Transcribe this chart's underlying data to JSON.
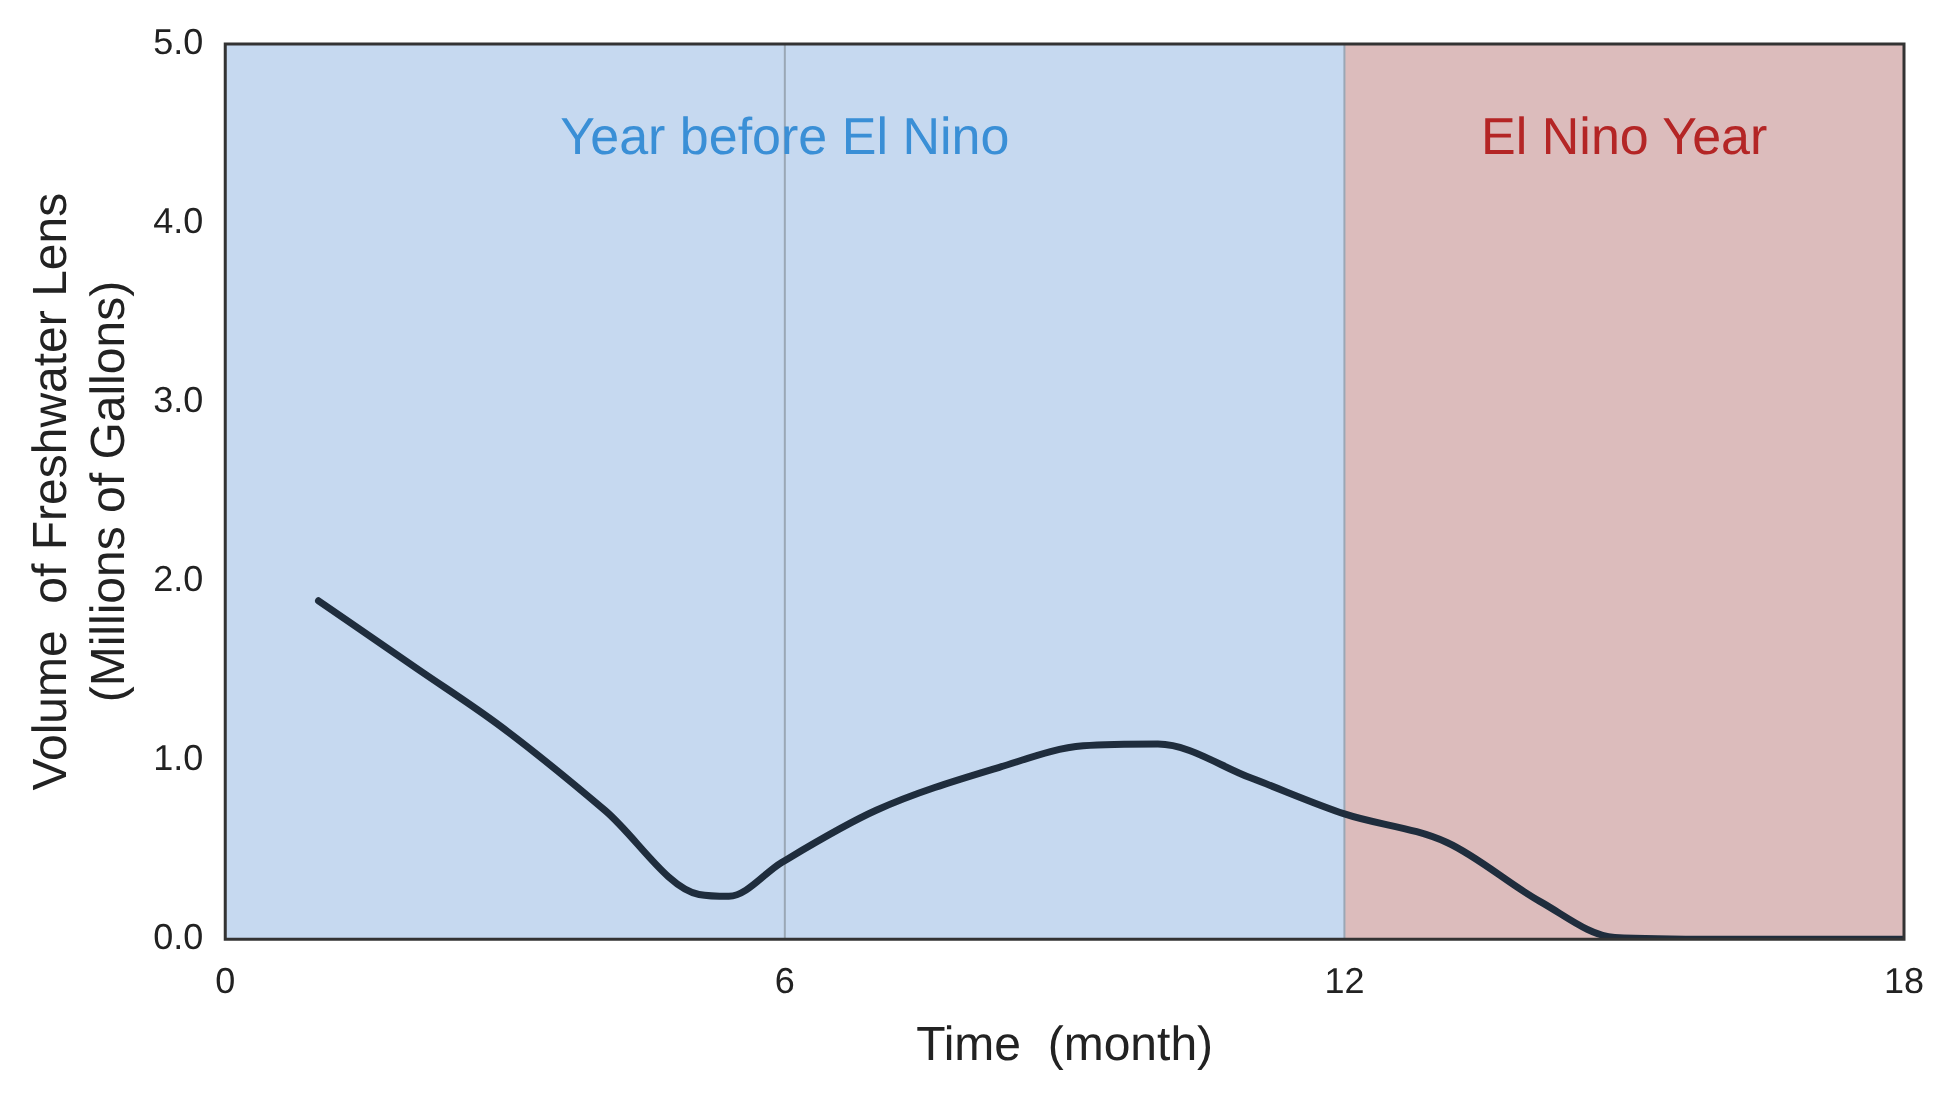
{
  "chart_data": {
    "type": "line",
    "xlabel": "Time  (month)",
    "ylabel": "Volume  of Freshwater Lens\n(Millions of Gallons)",
    "x": [
      1,
      2.06,
      2.95,
      4.07,
      5.08,
      5.4,
      5.97,
      6.98,
      8.3,
      9.2,
      10,
      11,
      12,
      13.1,
      14.1,
      14.9,
      16,
      18
    ],
    "series": [
      {
        "color": "#1f2d3d",
        "values": [
          1.89,
          1.51,
          1.19,
          0.72,
          0.25,
          0.24,
          0.43,
          0.72,
          0.96,
          1.08,
          1.09,
          0.9,
          0.7,
          0.54,
          0.21,
          0.01,
          0,
          0
        ]
      }
    ],
    "xlim": [
      0,
      18
    ],
    "xticks": [
      0,
      6,
      12,
      18
    ],
    "ylim": [
      0,
      5
    ],
    "yticks": [
      {
        "value": 0,
        "label": "0.0"
      },
      {
        "value": 1,
        "label": "1.0"
      },
      {
        "value": 2,
        "label": "2.0"
      },
      {
        "value": 3,
        "label": "3.0"
      },
      {
        "value": 4,
        "label": "4.0"
      },
      {
        "value": 5,
        "label": "5.0"
      }
    ],
    "bands": [
      {
        "axis": "x",
        "from": 0,
        "to": 12,
        "label": "Year before El Nino",
        "color": "#c6d9f0"
      },
      {
        "axis": "x",
        "from": 12,
        "to": 18,
        "label": "El Nino Year",
        "color": "#dcbcbc"
      }
    ],
    "grid": "x",
    "legend": false,
    "marker": "none",
    "line_style": "solid"
  }
}
